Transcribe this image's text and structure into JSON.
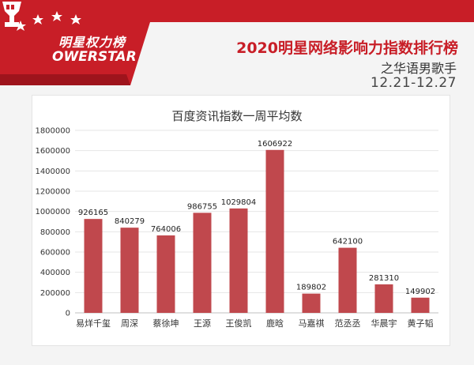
{
  "header": {
    "brand_cn": "明星权力榜",
    "brand_en": "OWERSTAR",
    "title": "2020明星网络影响力指数排行榜",
    "subtitle": "之华语男歌手",
    "date_range": "12.21-12.27"
  },
  "colors": {
    "banner_red": "#c81e27",
    "bar": "#c0484d"
  },
  "chart_data": {
    "type": "bar",
    "title": "百度资讯指数一周平均数",
    "categories": [
      "易烊千玺",
      "周深",
      "蔡徐坤",
      "王源",
      "王俊凯",
      "鹿晗",
      "马嘉祺",
      "范丞丞",
      "华晨宇",
      "黄子韬"
    ],
    "values": [
      926165,
      840279,
      764006,
      986755,
      1029804,
      1606922,
      189802,
      642100,
      281310,
      149902
    ],
    "data_labels": [
      "926165",
      "840279",
      "764006",
      "986755",
      "1029804",
      "1606922",
      "189802",
      "642100",
      "281310",
      "149902"
    ],
    "yticks": [
      0,
      200000,
      400000,
      600000,
      800000,
      1000000,
      1200000,
      1400000,
      1600000,
      1800000
    ],
    "ytick_labels": [
      "0",
      "200000",
      "400000",
      "600000",
      "800000",
      "1000000",
      "1200000",
      "1400000",
      "1600000",
      "1800000"
    ],
    "ylim": [
      0,
      1800000
    ],
    "xlabel": "",
    "ylabel": "",
    "grid": true
  }
}
